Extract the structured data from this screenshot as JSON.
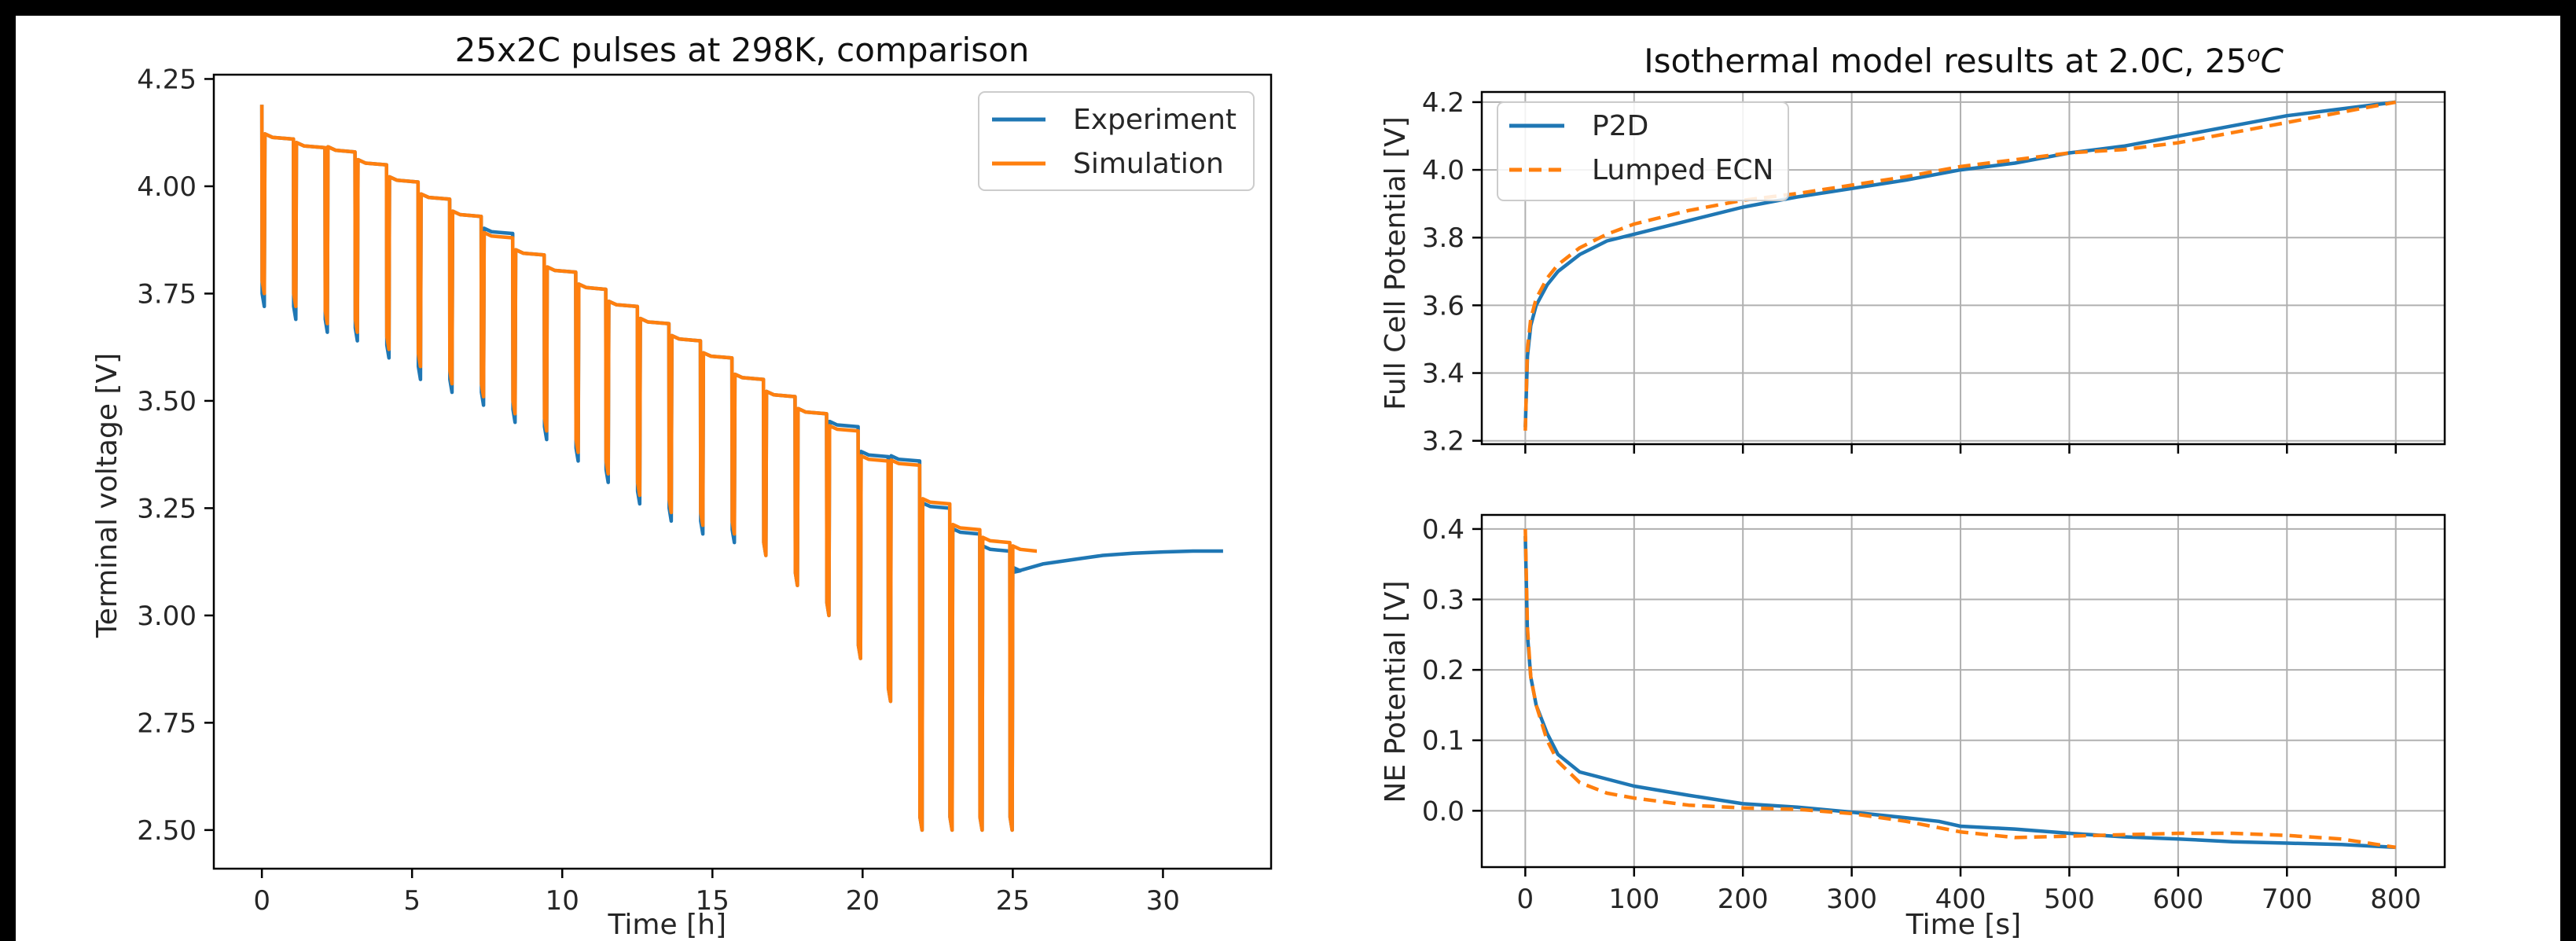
{
  "colors": {
    "experiment": "#1f77b4",
    "simulation": "#ff7f0e",
    "grid": "#b0b0b0",
    "axis": "#000000"
  },
  "chart_data": [
    {
      "type": "line",
      "title": "25x2C pulses at 298K, comparison",
      "xlabel": "Time [h]",
      "ylabel": "Terminal voltage [V]",
      "xlim": [
        -1.6,
        33.6
      ],
      "ylim": [
        2.41,
        4.26
      ],
      "xticks": [
        0,
        5,
        10,
        15,
        20,
        25,
        30
      ],
      "yticks": [
        2.5,
        2.75,
        3.0,
        3.25,
        3.5,
        3.75,
        4.0,
        4.25
      ],
      "grid": false,
      "legend": "top-right",
      "pulse_starts_h": [
        0,
        1.05,
        2.1,
        3.1,
        4.15,
        5.2,
        6.25,
        7.3,
        8.35,
        9.4,
        10.45,
        11.45,
        12.5,
        13.55,
        14.6,
        15.65,
        16.7,
        17.75,
        18.8,
        19.85,
        20.85,
        21.9,
        22.9,
        23.9,
        24.9
      ],
      "series": [
        {
          "name": "Experiment",
          "pulse_min_v": [
            3.72,
            3.69,
            3.66,
            3.64,
            3.6,
            3.55,
            3.52,
            3.49,
            3.45,
            3.41,
            3.36,
            3.31,
            3.26,
            3.22,
            3.19,
            3.17,
            3.14,
            3.07,
            3.0,
            2.9,
            2.8,
            2.5,
            2.5,
            2.5,
            2.5
          ],
          "rest_v": [
            4.11,
            4.09,
            4.08,
            4.05,
            4.01,
            3.97,
            3.93,
            3.89,
            3.84,
            3.8,
            3.76,
            3.72,
            3.68,
            3.64,
            3.6,
            3.55,
            3.51,
            3.47,
            3.44,
            3.37,
            3.36,
            3.25,
            3.19,
            3.15,
            3.1
          ],
          "tail": {
            "x": [
              25.0,
              26,
              27,
              28,
              29,
              30,
              31,
              32
            ],
            "y": [
              3.1,
              3.12,
              3.13,
              3.14,
              3.145,
              3.148,
              3.15,
              3.15
            ]
          }
        },
        {
          "name": "Simulation",
          "pulse_min_v": [
            3.75,
            3.72,
            3.68,
            3.66,
            3.62,
            3.58,
            3.54,
            3.51,
            3.47,
            3.43,
            3.38,
            3.33,
            3.28,
            3.24,
            3.21,
            3.19,
            3.14,
            3.07,
            3.0,
            2.9,
            2.8,
            2.5,
            2.5,
            2.5,
            2.5
          ],
          "rest_v": [
            4.11,
            4.09,
            4.08,
            4.05,
            4.01,
            3.97,
            3.93,
            3.88,
            3.84,
            3.8,
            3.76,
            3.72,
            3.68,
            3.64,
            3.6,
            3.55,
            3.51,
            3.47,
            3.43,
            3.36,
            3.35,
            3.26,
            3.2,
            3.17,
            3.15
          ],
          "end_h": 25.8
        }
      ]
    },
    {
      "type": "line",
      "title": "Isothermal model results at 2.0C, 25",
      "title_unit": "°C",
      "xlabel": "",
      "ylabel": "Full Cell Potential [V]",
      "xlim": [
        -40,
        845
      ],
      "ylim": [
        3.19,
        4.23
      ],
      "xticks": [
        0,
        100,
        200,
        300,
        400,
        500,
        600,
        700,
        800
      ],
      "yticks": [
        3.2,
        3.4,
        3.6,
        3.8,
        4.0,
        4.2
      ],
      "grid": true,
      "legend": "top-left",
      "series": [
        {
          "name": "P2D",
          "style": "solid",
          "x": [
            0,
            2,
            5,
            10,
            20,
            30,
            50,
            75,
            100,
            150,
            200,
            250,
            300,
            350,
            400,
            450,
            500,
            550,
            600,
            650,
            700,
            750,
            800
          ],
          "y": [
            3.24,
            3.45,
            3.54,
            3.6,
            3.66,
            3.7,
            3.75,
            3.79,
            3.81,
            3.85,
            3.89,
            3.92,
            3.945,
            3.97,
            4.0,
            4.02,
            4.05,
            4.07,
            4.1,
            4.13,
            4.16,
            4.18,
            4.2
          ]
        },
        {
          "name": "Lumped ECN",
          "style": "dashed",
          "x": [
            0,
            2,
            5,
            10,
            20,
            30,
            50,
            75,
            100,
            150,
            200,
            250,
            300,
            350,
            400,
            450,
            500,
            550,
            600,
            650,
            700,
            750,
            800
          ],
          "y": [
            3.23,
            3.47,
            3.56,
            3.62,
            3.68,
            3.72,
            3.77,
            3.81,
            3.84,
            3.88,
            3.91,
            3.93,
            3.955,
            3.98,
            4.01,
            4.03,
            4.05,
            4.06,
            4.08,
            4.11,
            4.14,
            4.17,
            4.2
          ]
        }
      ]
    },
    {
      "type": "line",
      "title": "",
      "xlabel": "Time [s]",
      "ylabel": "NE Potential [V]",
      "xlim": [
        -40,
        845
      ],
      "ylim": [
        -0.08,
        0.42
      ],
      "xticks": [
        0,
        100,
        200,
        300,
        400,
        500,
        600,
        700,
        800
      ],
      "yticks": [
        0.0,
        0.1,
        0.2,
        0.3,
        0.4
      ],
      "grid": true,
      "series": [
        {
          "name": "P2D",
          "style": "solid",
          "x": [
            0,
            2,
            5,
            10,
            20,
            30,
            50,
            75,
            100,
            150,
            200,
            250,
            300,
            350,
            380,
            400,
            450,
            500,
            550,
            600,
            650,
            700,
            750,
            800
          ],
          "y": [
            0.39,
            0.25,
            0.19,
            0.15,
            0.11,
            0.08,
            0.055,
            0.045,
            0.035,
            0.022,
            0.01,
            0.005,
            -0.002,
            -0.01,
            -0.015,
            -0.022,
            -0.026,
            -0.032,
            -0.037,
            -0.04,
            -0.044,
            -0.046,
            -0.048,
            -0.052
          ]
        },
        {
          "name": "Lumped ECN",
          "style": "dashed",
          "x": [
            0,
            2,
            5,
            10,
            20,
            30,
            50,
            75,
            100,
            150,
            200,
            250,
            300,
            350,
            400,
            450,
            500,
            550,
            600,
            650,
            700,
            750,
            800
          ],
          "y": [
            0.4,
            0.26,
            0.19,
            0.15,
            0.1,
            0.07,
            0.04,
            0.025,
            0.018,
            0.008,
            0.004,
            0.002,
            -0.004,
            -0.015,
            -0.03,
            -0.038,
            -0.036,
            -0.034,
            -0.032,
            -0.032,
            -0.035,
            -0.04,
            -0.052
          ]
        }
      ]
    }
  ]
}
